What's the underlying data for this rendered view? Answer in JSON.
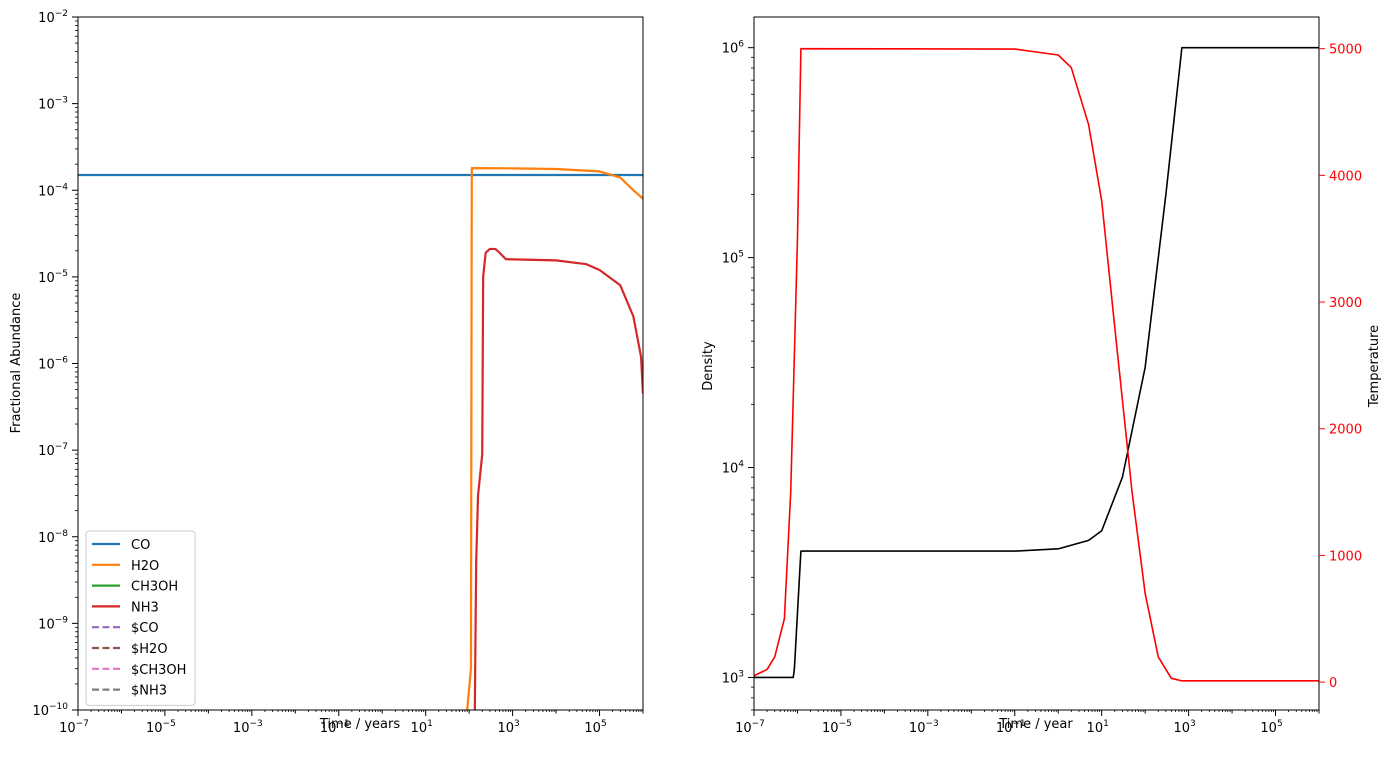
{
  "chart_data": [
    {
      "type": "line",
      "xscale": "log",
      "yscale": "log",
      "xlim": [
        1e-07,
        1000000
      ],
      "ylim": [
        1e-10,
        0.01
      ],
      "xlabel": "Time / years",
      "ylabel": "Fractional Abundance",
      "grid": false,
      "legend_position": "lower-left",
      "x_ticks": [
        {
          "base": "10",
          "exp": "−7"
        },
        {
          "base": "10",
          "exp": "−5"
        },
        {
          "base": "10",
          "exp": "−3"
        },
        {
          "base": "10",
          "exp": "−1"
        },
        {
          "base": "10",
          "exp": "1"
        },
        {
          "base": "10",
          "exp": "3"
        },
        {
          "base": "10",
          "exp": "5"
        }
      ],
      "y_ticks": [
        {
          "base": "10",
          "exp": "−10"
        },
        {
          "base": "10",
          "exp": "−9"
        },
        {
          "base": "10",
          "exp": "−8"
        },
        {
          "base": "10",
          "exp": "−7"
        },
        {
          "base": "10",
          "exp": "−6"
        },
        {
          "base": "10",
          "exp": "−5"
        },
        {
          "base": "10",
          "exp": "−4"
        },
        {
          "base": "10",
          "exp": "−3"
        },
        {
          "base": "10",
          "exp": "−2"
        }
      ],
      "series": [
        {
          "name": "CO",
          "color": "#1f77b4",
          "dash": false,
          "points": [
            [
              1e-07,
              0.00015
            ],
            [
              1000000,
              0.00015
            ]
          ]
        },
        {
          "name": "H2O",
          "color": "#ff7f0e",
          "dash": false,
          "points": [
            [
              90,
              1e-10
            ],
            [
              110,
              3e-10
            ],
            [
              115,
              0.00018
            ],
            [
              1000,
              0.000179
            ],
            [
              10000,
              0.000176
            ],
            [
              100000,
              0.000165
            ],
            [
              300000,
              0.00014
            ],
            [
              600000,
              0.0001
            ],
            [
              1000000,
              8e-05
            ]
          ]
        },
        {
          "name": "CH3OH",
          "color": "#2ca02c",
          "dash": false,
          "points": []
        },
        {
          "name": "NH3",
          "color": "#d62728",
          "dash": false,
          "points": [
            [
              135,
              1e-10
            ],
            [
              145,
              5e-09
            ],
            [
              160,
              3e-08
            ],
            [
              200,
              9e-08
            ],
            [
              210,
              1e-05
            ],
            [
              240,
              1.9e-05
            ],
            [
              300,
              2.1e-05
            ],
            [
              400,
              2.1e-05
            ],
            [
              500,
              1.9e-05
            ],
            [
              700,
              1.6e-05
            ],
            [
              10000,
              1.55e-05
            ],
            [
              50000,
              1.4e-05
            ],
            [
              100000,
              1.2e-05
            ],
            [
              300000,
              8e-06
            ],
            [
              600000,
              3.5e-06
            ],
            [
              900000,
              1.2e-06
            ],
            [
              1000000,
              4.5e-07
            ]
          ]
        },
        {
          "name": "$CO",
          "color": "#9467bd",
          "dash": true,
          "points": []
        },
        {
          "name": "$H2O",
          "color": "#8c564b",
          "dash": true,
          "points": []
        },
        {
          "name": "$CH3OH",
          "color": "#e377c2",
          "dash": true,
          "points": []
        },
        {
          "name": "$NH3",
          "color": "#7f7f7f",
          "dash": true,
          "points": []
        }
      ]
    },
    {
      "type": "line",
      "xscale": "log",
      "yscale": "log",
      "y2scale": "linear",
      "xlim": [
        1e-07,
        1000000
      ],
      "ylim": [
        700,
        1400000
      ],
      "y2lim": [
        -220,
        5250
      ],
      "xlabel": "Time / year",
      "ylabel": "Density",
      "y2label": "Temperature",
      "y2color": "#ff0000",
      "grid": false,
      "x_ticks": [
        {
          "base": "10",
          "exp": "−7"
        },
        {
          "base": "10",
          "exp": "−5"
        },
        {
          "base": "10",
          "exp": "−3"
        },
        {
          "base": "10",
          "exp": "−1"
        },
        {
          "base": "10",
          "exp": "1"
        },
        {
          "base": "10",
          "exp": "3"
        },
        {
          "base": "10",
          "exp": "5"
        }
      ],
      "y_ticks": [
        {
          "base": "10",
          "exp": "3"
        },
        {
          "base": "10",
          "exp": "4"
        },
        {
          "base": "10",
          "exp": "5"
        },
        {
          "base": "10",
          "exp": "6"
        }
      ],
      "y2_ticks": [
        "0",
        "1000",
        "2000",
        "3000",
        "4000",
        "5000"
      ],
      "series": [
        {
          "name": "Density",
          "axis": "left",
          "color": "#000000",
          "points": [
            [
              1e-07,
              1000
            ],
            [
              8e-07,
              1000
            ],
            [
              8.5e-07,
              1100
            ],
            [
              1.2e-06,
              4000
            ],
            [
              0.1,
              4000
            ],
            [
              1,
              4100
            ],
            [
              5,
              4500
            ],
            [
              10,
              5000
            ],
            [
              30,
              9000
            ],
            [
              100,
              30000
            ],
            [
              300,
              200000
            ],
            [
              700,
              1000000
            ],
            [
              1000000,
              1000000
            ]
          ]
        },
        {
          "name": "Temperature",
          "axis": "right",
          "color": "#ff0000",
          "points": [
            [
              1e-07,
              50
            ],
            [
              2e-07,
              100
            ],
            [
              3e-07,
              200
            ],
            [
              5e-07,
              500
            ],
            [
              7e-07,
              1500
            ],
            [
              1e-06,
              3500
            ],
            [
              1.2e-06,
              5000
            ],
            [
              0.1,
              4997
            ],
            [
              1,
              4950
            ],
            [
              2,
              4850
            ],
            [
              5,
              4400
            ],
            [
              10,
              3800
            ],
            [
              20,
              2800
            ],
            [
              50,
              1500
            ],
            [
              100,
              700
            ],
            [
              200,
              200
            ],
            [
              400,
              30
            ],
            [
              700,
              10
            ],
            [
              1000000,
              10
            ]
          ]
        }
      ]
    }
  ]
}
